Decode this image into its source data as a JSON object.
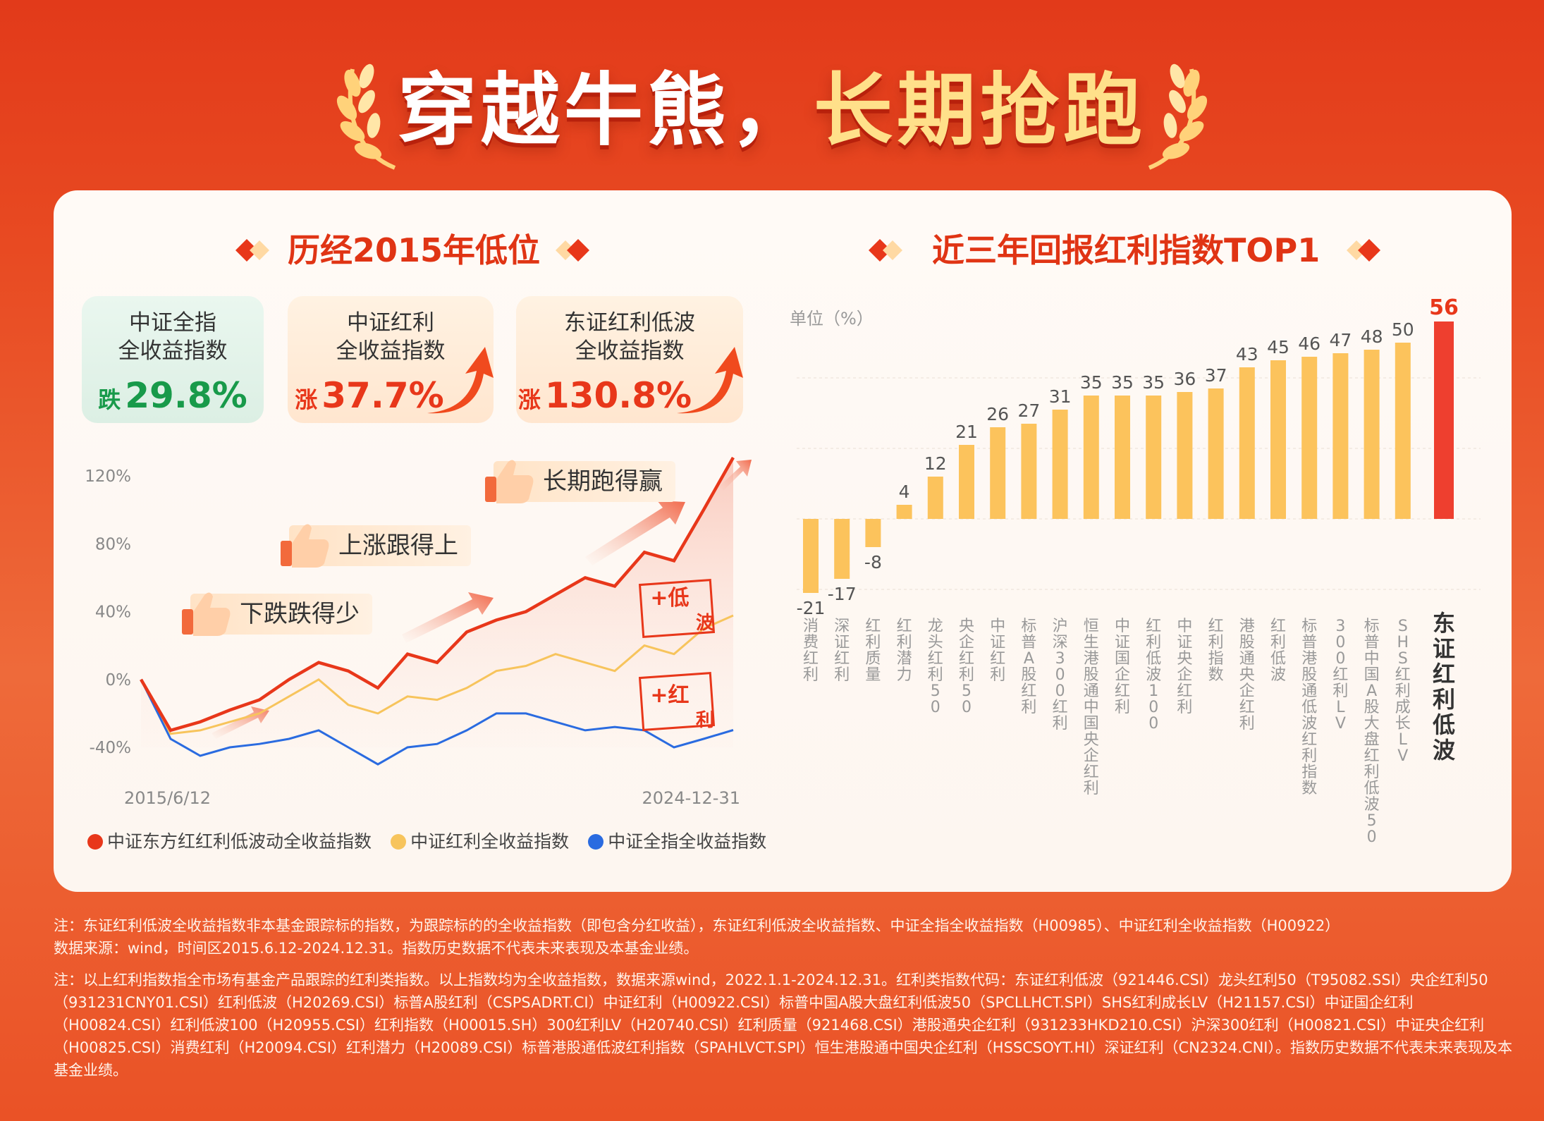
{
  "title": {
    "part1": "穿越牛熊，",
    "part2": "长期抢跑"
  },
  "colors": {
    "red": "#e8371a",
    "bar": "#fcc35c",
    "highlight": "#ee3f2f",
    "green": "#189a4a",
    "blue": "#2a6be0",
    "gold_line": "#f7c45c"
  },
  "left": {
    "section_title": "历经2015年低位",
    "cards": [
      {
        "name1": "中证全指",
        "name2": "全收益指数",
        "dir": "跌",
        "value": "29.8%"
      },
      {
        "name1": "中证红利",
        "name2": "全收益指数",
        "dir": "涨",
        "value": "37.7%"
      },
      {
        "name1": "东证红利低波",
        "name2": "全收益指数",
        "dir": "涨",
        "value": "130.8%"
      }
    ],
    "bubbles": [
      "下跌跌得少",
      "上涨跟得上",
      "长期跑得赢"
    ],
    "stamps": [
      "+低",
      "波",
      "+红",
      "利"
    ],
    "legend": [
      "中证东方红红利低波动全收益指数",
      "中证红利全收益指数",
      "中证全指全收益指数"
    ]
  },
  "chart_data": [
    {
      "type": "line",
      "title": "历经2015年低位",
      "x_start": "2015/6/12",
      "x_end": "2024-12-31",
      "ytick_labels": [
        "120%",
        "80%",
        "40%",
        "0%",
        "-40%"
      ],
      "ylim": [
        -40,
        120
      ],
      "series": [
        {
          "name": "中证东方红红利低波动全收益指数",
          "color": "#e8371a",
          "x": [
            "2015/6/12",
            "2015-07",
            "2016-01",
            "2016-06",
            "2017-01",
            "2017-06",
            "2018-01",
            "2018-06",
            "2019-01",
            "2019-06",
            "2020-01",
            "2020-06",
            "2021-01",
            "2021-06",
            "2022-01",
            "2022-06",
            "2023-01",
            "2023-06",
            "2024-01",
            "2024-06",
            "2024-12-31"
          ],
          "y": [
            0,
            -30,
            -25,
            -18,
            -12,
            0,
            10,
            5,
            -5,
            15,
            10,
            28,
            35,
            40,
            50,
            60,
            55,
            75,
            70,
            100,
            130.8
          ]
        },
        {
          "name": "中证红利全收益指数",
          "color": "#f7c45c",
          "x": [
            "2015/6/12",
            "2015-07",
            "2016-01",
            "2016-06",
            "2017-01",
            "2017-06",
            "2018-01",
            "2018-06",
            "2019-01",
            "2019-06",
            "2020-01",
            "2020-06",
            "2021-01",
            "2021-06",
            "2022-01",
            "2022-06",
            "2023-01",
            "2023-06",
            "2024-01",
            "2024-06",
            "2024-12-31"
          ],
          "y": [
            0,
            -32,
            -30,
            -25,
            -20,
            -10,
            0,
            -15,
            -20,
            -10,
            -12,
            -5,
            5,
            8,
            15,
            10,
            5,
            20,
            15,
            30,
            37.7
          ]
        },
        {
          "name": "中证全指全收益指数",
          "color": "#2a6be0",
          "x": [
            "2015/6/12",
            "2015-07",
            "2016-01",
            "2016-06",
            "2017-01",
            "2017-06",
            "2018-01",
            "2018-06",
            "2019-01",
            "2019-06",
            "2020-01",
            "2020-06",
            "2021-01",
            "2021-06",
            "2022-01",
            "2022-06",
            "2023-01",
            "2023-06",
            "2024-01",
            "2024-06",
            "2024-12-31"
          ],
          "y": [
            0,
            -35,
            -45,
            -40,
            -38,
            -35,
            -30,
            -40,
            -50,
            -40,
            -38,
            -30,
            -20,
            -20,
            -25,
            -30,
            -28,
            -30,
            -40,
            -35,
            -29.8
          ]
        }
      ]
    },
    {
      "type": "bar",
      "title": "近三年回报红利指数TOP1",
      "unit_label": "单位（%）",
      "categories": [
        "消费红利",
        "深证红利",
        "红利质量",
        "红利潜力",
        "龙头红利50",
        "央企红利50",
        "中证红利",
        "标普A股红利",
        "沪深300红利",
        "恒生港股通中国央企红利",
        "中证国企红利",
        "红利低波100",
        "中证央企红利",
        "红利指数",
        "港股通央企红利",
        "红利低波",
        "标普港股通低波红利指数",
        "300红利LV",
        "标普中国A股大盘红利低波50",
        "SHS红利成长LV",
        "东证红利低波"
      ],
      "values": [
        -21,
        -17,
        -8,
        4,
        12,
        21,
        26,
        27,
        31,
        35,
        35,
        35,
        36,
        37,
        43,
        45,
        46,
        47,
        48,
        50,
        56
      ],
      "highlight": "东证红利低波"
    }
  ],
  "notes": {
    "n1": "注：东证红利低波全收益指数非本基金跟踪标的指数，为跟踪标的的全收益指数（即包含分红收益），东证红利低波全收益指数、中证全指全收益指数（H00985）、中证红利全收益指数（H00922）",
    "n1b": "数据来源：wind，时间区2015.6.12-2024.12.31。指数历史数据不代表未来表现及本基金业绩。",
    "n2": "注：以上红利指数指全市场有基金产品跟踪的红利类指数。以上指数均为全收益指数，数据来源wind，2022.1.1-2024.12.31。红利类指数代码：东证红利低波（921446.CSI）龙头红利50（T95082.SSI）央企红利50（931231CNY01.CSI）红利低波（H20269.CSI）标普A股红利（CSPSADRT.CI）中证红利（H00922.CSI）标普中国A股大盘红利低波50（SPCLLHCT.SPI）SHS红利成长LV（H21157.CSI）中证国企红利（H00824.CSI）红利低波100（H20955.CSI）红利指数（H00015.SH）300红利LV（H20740.CSI）红利质量（921468.CSI）港股通央企红利（931233HKD210.CSI）沪深300红利（H00821.CSI）中证央企红利（H00825.CSI）消费红利（H20094.CSI）红利潜力（H20089.CSI）标普港股通低波红利指数（SPAHLVCT.SPI）恒生港股通中国央企红利（HSSCSOYT.HI）深证红利（CN2324.CNI）。指数历史数据不代表未来表现及本基金业绩。"
  }
}
